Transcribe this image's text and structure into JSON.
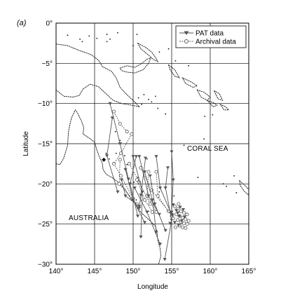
{
  "panel_label": "(a)",
  "axes": {
    "xlabel": "Longitude",
    "ylabel": "Latitude",
    "xlim": [
      140,
      165
    ],
    "ylim": [
      -30,
      0
    ],
    "xticks": [
      {
        "value": 140,
        "label": "140°"
      },
      {
        "value": 145,
        "label": "145°"
      },
      {
        "value": 150,
        "label": "150°"
      },
      {
        "value": 155,
        "label": "155°"
      },
      {
        "value": 160,
        "label": "160°"
      },
      {
        "value": 165,
        "label": "165°"
      }
    ],
    "yticks": [
      {
        "value": 0,
        "label": "0°"
      },
      {
        "value": -5,
        "label": "−5°"
      },
      {
        "value": -10,
        "label": "−10°"
      },
      {
        "value": -15,
        "label": "−15°"
      },
      {
        "value": -20,
        "label": "−20°"
      },
      {
        "value": -25,
        "label": "−25°"
      },
      {
        "value": -30,
        "label": "−30°"
      }
    ],
    "grid": true
  },
  "labels": {
    "coral_sea": "CORAL SEA",
    "australia": "AUSTRALIA"
  },
  "legend": {
    "position": "top-right",
    "pat": "PAT data",
    "archival": "Archival data"
  },
  "colors": {
    "pat": "#555555",
    "archival": "#555555",
    "coast": "#111111",
    "grid": "#000000"
  },
  "map_data": {
    "pat_tracks": [
      [
        [
          147.0,
          -10.0
        ],
        [
          148.3,
          -15.0
        ],
        [
          149.4,
          -19.4
        ]
      ],
      [
        [
          147.3,
          -11.8
        ],
        [
          146.6,
          -16.5
        ],
        [
          148.0,
          -21.0
        ]
      ],
      [
        [
          150.0,
          -16.6
        ],
        [
          151.2,
          -21.0
        ],
        [
          151.0,
          -26.6
        ]
      ],
      [
        [
          150.4,
          -16.6
        ],
        [
          149.6,
          -20.0
        ],
        [
          150.6,
          -24.0
        ]
      ],
      [
        [
          150.8,
          -16.6
        ],
        [
          152.0,
          -21.5
        ],
        [
          153.4,
          -23.8
        ]
      ],
      [
        [
          151.6,
          -16.8
        ],
        [
          151.0,
          -21.4
        ],
        [
          150.8,
          -23.0
        ]
      ],
      [
        [
          153.0,
          -16.6
        ],
        [
          153.5,
          -20.5
        ],
        [
          155.0,
          -23.8
        ]
      ],
      [
        [
          154.5,
          -18.0
        ],
        [
          154.2,
          -20.5
        ],
        [
          155.0,
          -24.5
        ],
        [
          154.1,
          -29.4
        ]
      ],
      [
        [
          149.0,
          -18.2
        ],
        [
          150.0,
          -22.0
        ],
        [
          151.5,
          -24.8
        ]
      ],
      [
        [
          152.2,
          -19.0
        ],
        [
          152.8,
          -22.5
        ],
        [
          154.2,
          -25.8
        ]
      ],
      [
        [
          155.0,
          -16.0
        ],
        [
          155.2,
          -19.5
        ],
        [
          155.0,
          -23.5
        ]
      ],
      [
        [
          151.5,
          -18.5
        ],
        [
          152.5,
          -22.0
        ],
        [
          153.0,
          -26.0
        ]
      ],
      [
        [
          150.2,
          -20.5
        ],
        [
          151.8,
          -23.5
        ],
        [
          153.5,
          -27.5
        ]
      ],
      [
        [
          148.5,
          -19.5
        ],
        [
          149.0,
          -21.5
        ],
        [
          150.8,
          -22.8
        ]
      ]
    ],
    "archival_tracks": [
      [
        [
          147.5,
          -11.0
        ],
        [
          148.3,
          -12.5
        ],
        [
          149.2,
          -13.5
        ]
      ],
      [
        [
          149.8,
          -13.8
        ],
        [
          148.4,
          -16.2
        ],
        [
          147.5,
          -17.5
        ],
        [
          148.4,
          -19.0
        ],
        [
          150.0,
          -21.8
        ]
      ],
      [
        [
          148.3,
          -17.0
        ],
        [
          148.2,
          -20.0
        ],
        [
          150.5,
          -22.5
        ]
      ],
      [
        [
          151.0,
          -18.0
        ],
        [
          152.4,
          -20.8
        ],
        [
          154.6,
          -23.4
        ]
      ],
      [
        [
          152.0,
          -18.5
        ],
        [
          151.8,
          -21.5
        ],
        [
          153.0,
          -23.5
        ]
      ],
      [
        [
          153.0,
          -18.5
        ],
        [
          153.2,
          -21.5
        ],
        [
          155.0,
          -24.0
        ]
      ],
      [
        [
          149.5,
          -17.5
        ],
        [
          150.8,
          -19.8
        ],
        [
          152.2,
          -22.5
        ]
      ],
      [
        [
          150.5,
          -19.5
        ],
        [
          151.5,
          -22.0
        ],
        [
          152.5,
          -23.5
        ]
      ]
    ],
    "archival_cluster": [
      [
        155.4,
        -22.8
      ],
      [
        155.8,
        -23.1
      ],
      [
        156.2,
        -23.4
      ],
      [
        156.6,
        -23.6
      ],
      [
        155.6,
        -23.8
      ],
      [
        156.0,
        -24.0
      ],
      [
        156.4,
        -24.2
      ],
      [
        156.8,
        -24.4
      ],
      [
        155.8,
        -24.5
      ],
      [
        156.2,
        -24.7
      ],
      [
        156.6,
        -24.9
      ],
      [
        157.0,
        -25.0
      ],
      [
        156.0,
        -25.2
      ],
      [
        156.4,
        -25.4
      ],
      [
        156.8,
        -25.5
      ],
      [
        155.5,
        -25.4
      ],
      [
        157.2,
        -24.6
      ],
      [
        157.0,
        -23.8
      ],
      [
        155.2,
        -24.3
      ],
      [
        155.9,
        -22.5
      ]
    ],
    "pat_cluster": [
      [
        155.2,
        -22.6
      ],
      [
        155.6,
        -23.3
      ],
      [
        156.0,
        -24.0
      ],
      [
        155.8,
        -23.6
      ],
      [
        156.3,
        -24.6
      ],
      [
        155.4,
        -24.8
      ],
      [
        156.7,
        -24.1
      ],
      [
        155.9,
        -25.1
      ],
      [
        156.5,
        -23.2
      ],
      [
        155.1,
        -23.9
      ],
      [
        154.8,
        -24.9
      ],
      [
        156.1,
        -22.9
      ]
    ],
    "coast_australia": [
      [
        140.0,
        -17.5
      ],
      [
        140.5,
        -17.6
      ],
      [
        141.0,
        -16.8
      ],
      [
        141.5,
        -15.2
      ],
      [
        141.6,
        -13.6
      ],
      [
        141.8,
        -12.6
      ],
      [
        142.0,
        -11.8
      ],
      [
        142.5,
        -10.8
      ],
      [
        142.8,
        -11.2
      ],
      [
        143.3,
        -12.2
      ],
      [
        143.6,
        -13.0
      ],
      [
        143.5,
        -13.8
      ],
      [
        144.3,
        -14.3
      ],
      [
        145.0,
        -14.8
      ],
      [
        145.3,
        -15.8
      ],
      [
        145.6,
        -16.6
      ],
      [
        146.0,
        -17.4
      ],
      [
        146.1,
        -18.2
      ],
      [
        146.5,
        -18.8
      ],
      [
        147.4,
        -19.3
      ],
      [
        148.3,
        -20.0
      ],
      [
        148.8,
        -20.5
      ],
      [
        149.3,
        -21.2
      ],
      [
        149.8,
        -22.0
      ],
      [
        150.4,
        -22.5
      ],
      [
        150.7,
        -23.2
      ],
      [
        151.3,
        -23.8
      ],
      [
        152.2,
        -24.6
      ],
      [
        152.9,
        -25.3
      ],
      [
        153.1,
        -26.0
      ],
      [
        153.2,
        -27.0
      ],
      [
        153.5,
        -28.0
      ],
      [
        153.6,
        -29.0
      ],
      [
        153.3,
        -30.0
      ]
    ],
    "coast_png": [
      [
        140.0,
        -2.6
      ],
      [
        141.5,
        -2.8
      ],
      [
        143.0,
        -3.4
      ],
      [
        144.5,
        -3.9
      ],
      [
        145.5,
        -4.6
      ],
      [
        146.0,
        -5.4
      ],
      [
        147.2,
        -6.0
      ],
      [
        147.8,
        -6.8
      ],
      [
        148.3,
        -8.0
      ],
      [
        149.2,
        -8.9
      ],
      [
        150.2,
        -9.8
      ],
      [
        150.8,
        -10.4
      ],
      [
        149.8,
        -10.2
      ],
      [
        148.5,
        -10.0
      ],
      [
        147.4,
        -9.6
      ],
      [
        146.5,
        -8.8
      ],
      [
        145.5,
        -7.9
      ],
      [
        144.4,
        -7.6
      ],
      [
        143.5,
        -8.2
      ],
      [
        143.0,
        -9.0
      ],
      [
        142.2,
        -9.2
      ],
      [
        141.0,
        -9.1
      ],
      [
        140.0,
        -8.3
      ]
    ],
    "coast_new_britain": [
      [
        148.3,
        -5.6
      ],
      [
        149.2,
        -5.3
      ],
      [
        150.2,
        -5.5
      ],
      [
        151.0,
        -5.1
      ],
      [
        151.8,
        -4.5
      ],
      [
        152.3,
        -4.3
      ],
      [
        152.0,
        -5.0
      ],
      [
        151.3,
        -5.8
      ],
      [
        150.2,
        -6.2
      ],
      [
        149.2,
        -6.1
      ],
      [
        148.5,
        -5.9
      ]
    ],
    "coast_new_ireland": [
      [
        150.6,
        -2.5
      ],
      [
        151.6,
        -3.0
      ],
      [
        152.4,
        -3.6
      ],
      [
        153.0,
        -4.4
      ],
      [
        153.2,
        -4.8
      ],
      [
        152.6,
        -4.5
      ],
      [
        151.9,
        -3.9
      ],
      [
        151.0,
        -3.2
      ]
    ],
    "coast_solomons": [
      [
        [
          154.6,
          -5.2
        ],
        [
          155.4,
          -5.8
        ],
        [
          156.0,
          -6.8
        ],
        [
          155.4,
          -6.6
        ],
        [
          154.8,
          -5.8
        ]
      ],
      [
        [
          156.4,
          -6.8
        ],
        [
          157.5,
          -7.3
        ],
        [
          158.3,
          -7.8
        ],
        [
          157.8,
          -8.0
        ],
        [
          156.8,
          -7.5
        ]
      ],
      [
        [
          158.3,
          -8.3
        ],
        [
          159.2,
          -8.6
        ],
        [
          160.0,
          -9.2
        ],
        [
          159.6,
          -9.6
        ],
        [
          158.8,
          -9.2
        ]
      ],
      [
        [
          159.6,
          -9.6
        ],
        [
          160.4,
          -9.9
        ],
        [
          160.9,
          -10.2
        ],
        [
          160.4,
          -10.4
        ]
      ],
      [
        [
          160.5,
          -8.4
        ],
        [
          161.2,
          -8.8
        ],
        [
          161.6,
          -9.6
        ],
        [
          161.0,
          -9.4
        ]
      ],
      [
        [
          161.3,
          -10.1
        ],
        [
          162.0,
          -10.4
        ],
        [
          162.4,
          -10.8
        ],
        [
          161.8,
          -10.8
        ]
      ]
    ],
    "coast_new_caledonia": [
      [
        163.8,
        -19.6
      ],
      [
        164.5,
        -20.2
      ],
      [
        165.0,
        -20.7
      ],
      [
        165.0,
        -21.4
      ],
      [
        164.4,
        -20.9
      ],
      [
        163.9,
        -20.2
      ]
    ],
    "islands": [
      [
        141.5,
        -1.5
      ],
      [
        143.1,
        -2.0
      ],
      [
        143.4,
        -2.3
      ],
      [
        144.3,
        -1.6
      ],
      [
        145.3,
        -1.9
      ],
      [
        146.6,
        -2.3
      ],
      [
        147.0,
        -2.0
      ],
      [
        148.0,
        -1.2
      ],
      [
        150.5,
        -1.4
      ],
      [
        155.5,
        -4.7
      ],
      [
        154.6,
        -3.2
      ],
      [
        157.2,
        -5.3
      ],
      [
        150.0,
        -2.8
      ],
      [
        153.4,
        -3.6
      ],
      [
        146.6,
        -1.4
      ],
      [
        151.4,
        -8.9
      ],
      [
        152.0,
        -9.5
      ],
      [
        152.4,
        -9.8
      ],
      [
        153.2,
        -10.6
      ],
      [
        154.2,
        -11.3
      ],
      [
        152.9,
        -9.1
      ],
      [
        150.7,
        -9.3
      ],
      [
        151.1,
        -10.1
      ],
      [
        147.7,
        -13.5
      ],
      [
        148.3,
        -14.6
      ],
      [
        149.2,
        -17.6
      ],
      [
        151.8,
        -16.9
      ],
      [
        156.6,
        -15.2
      ],
      [
        158.4,
        -19.2
      ],
      [
        155.3,
        -21.5
      ],
      [
        153.4,
        -21.0
      ],
      [
        152.4,
        -20.0
      ],
      [
        150.6,
        -19.2
      ],
      [
        148.9,
        -16.5
      ],
      [
        147.8,
        -16.2
      ],
      [
        150.4,
        -22.0
      ],
      [
        152.0,
        -23.4
      ],
      [
        146.5,
        -16.2
      ],
      [
        146.9,
        -16.9
      ],
      [
        150.1,
        -19.8
      ],
      [
        159.3,
        -11.6
      ],
      [
        160.3,
        -11.4
      ],
      [
        161.7,
        -20.0
      ],
      [
        162.1,
        -20.3
      ],
      [
        163.1,
        -19.0
      ],
      [
        163.4,
        -21.1
      ],
      [
        166.0,
        -22.3
      ],
      [
        159.2,
        -14.4
      ]
    ],
    "reef_blob": [
      146.2,
      -17.0
    ]
  }
}
